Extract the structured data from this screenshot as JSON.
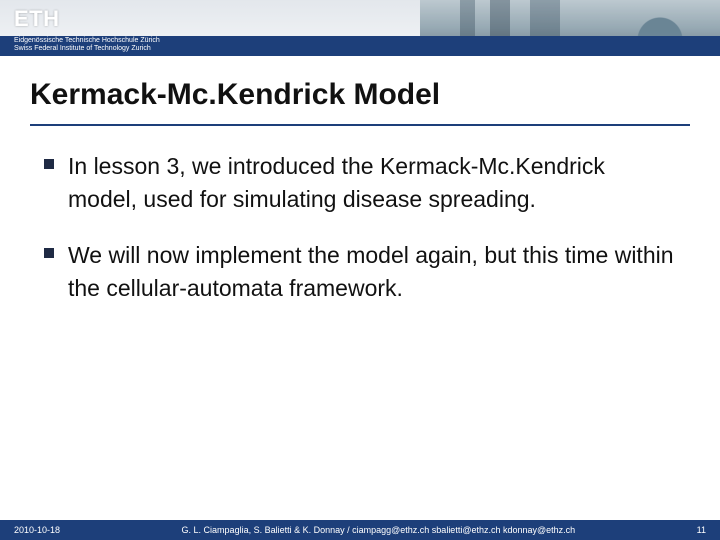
{
  "header": {
    "logo_text": "ETH",
    "institution_line1": "Eidgenössische Technische Hochschule Zürich",
    "institution_line2": "Swiss Federal Institute of Technology Zurich"
  },
  "title": "Kermack-Mc.Kendrick Model",
  "bullets": [
    "In lesson 3, we introduced the Kermack-Mc.Kendrick model, used for simulating disease spreading.",
    "We will now implement the model again, but this time within the cellular-automata framework."
  ],
  "footer": {
    "date": "2010-10-18",
    "credits": "G. L. Ciampaglia, S. Balietti & K. Donnay /  ciampagg@ethz.ch  sbalietti@ethz.ch  kdonnay@ethz.ch",
    "page": "11"
  },
  "colors": {
    "brand_blue": "#1d3f7a",
    "bullet_square": "#1f2a44",
    "title_text": "#111111",
    "body_text": "#111111",
    "footer_text": "#ffffff"
  }
}
